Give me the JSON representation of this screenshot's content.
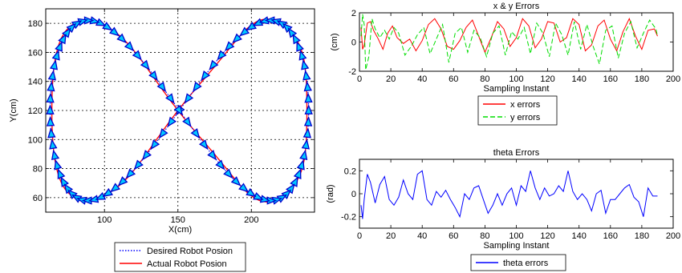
{
  "chart_data": [
    {
      "type": "line",
      "title": "",
      "xlabel": "X(cm)",
      "ylabel": "Y(cm)",
      "xlim": [
        60,
        243
      ],
      "ylim": [
        50,
        190
      ],
      "xticks": [
        100,
        150,
        200
      ],
      "yticks": [
        60,
        80,
        100,
        120,
        140,
        160,
        180
      ],
      "grid": "dotted",
      "legend_position": "bottom-outside",
      "series": [
        {
          "name": "Desired Robot Posion",
          "style": "dotted",
          "color": "#0000ff",
          "x": [
            150,
            165.4,
            180.3,
            194.2,
            206.6,
            217.0,
            224.9,
            230.1,
            232.4,
            231.6,
            227.6,
            220.7,
            211.0,
            198.9,
            185.0,
            169.9,
            154.1,
            138.4,
            123.1,
            109.0,
            96.6,
            86.6,
            79.2,
            74.8,
            73.5,
            75.4,
            80.4,
            88.2,
            98.5,
            110.9,
            125.0,
            140.2,
            150
          ],
          "y": [
            120,
            135.7,
            150.0,
            162.5,
            172.3,
            179.0,
            181.8,
            180.8,
            175.8,
            167.0,
            154.7,
            139.6,
            122.6,
            105.0,
            88.0,
            72.9,
            60.6,
            52.0,
            47.6,
            47.6,
            52.0,
            60.6,
            72.9,
            88.0,
            105.0,
            122.6,
            139.6,
            154.7,
            167.0,
            175.8,
            180.8,
            181.8,
            120
          ]
        },
        {
          "name": "Actual Robot Posion",
          "style": "solid",
          "color": "#ff0000",
          "x": [],
          "y": []
        }
      ],
      "robot_markers": {
        "count": 96,
        "fill": "#00c8ff",
        "stroke": "#0000cc"
      },
      "figure_eight": {
        "center_x": 151,
        "center_y": 120,
        "amp_x": 88,
        "amp_y": 62,
        "min_y": 58,
        "max_y": 182
      }
    },
    {
      "type": "line",
      "title": "x & y Errors",
      "xlabel": "Sampling Instant",
      "ylabel": "(cm)",
      "xlim": [
        0,
        200
      ],
      "ylim": [
        -2,
        2
      ],
      "xticks": [
        0,
        20,
        40,
        60,
        80,
        100,
        120,
        140,
        160,
        180,
        200
      ],
      "yticks": [
        -2,
        0,
        2
      ],
      "legend_position": "bottom-outside",
      "series": [
        {
          "name": "x errors",
          "style": "solid",
          "color": "#ff0000",
          "x": [
            1,
            2,
            3,
            5,
            7,
            9,
            12,
            15,
            18,
            21,
            24,
            28,
            32,
            36,
            40,
            44,
            48,
            52,
            56,
            60,
            64,
            68,
            72,
            76,
            80,
            84,
            88,
            92,
            96,
            100,
            104,
            108,
            112,
            116,
            120,
            124,
            128,
            132,
            136,
            140,
            144,
            148,
            152,
            156,
            160,
            164,
            168,
            172,
            176,
            180,
            184,
            188,
            190
          ],
          "y": [
            1.0,
            -0.5,
            -0.2,
            1.3,
            1.4,
            0.8,
            0.2,
            -0.5,
            0.6,
            1.1,
            0.3,
            -0.1,
            0.2,
            -0.6,
            0.1,
            1.2,
            1.6,
            0.9,
            -0.3,
            -0.5,
            0.1,
            1.0,
            1.5,
            0.4,
            -0.7,
            0.3,
            1.4,
            0.9,
            -0.3,
            0.3,
            1.6,
            1.1,
            -0.4,
            0.2,
            1.4,
            1.3,
            0.0,
            0.3,
            1.6,
            1.2,
            -0.6,
            -0.2,
            1.1,
            1.5,
            0.2,
            -0.6,
            0.7,
            1.6,
            0.4,
            -0.5,
            0.8,
            0.9,
            0.4
          ]
        },
        {
          "name": "y errors",
          "style": "dashed",
          "color": "#00dd00",
          "x": [
            1,
            2,
            3,
            4,
            6,
            8,
            10,
            13,
            16,
            19,
            22,
            25,
            29,
            33,
            37,
            41,
            45,
            49,
            53,
            57,
            61,
            65,
            69,
            73,
            77,
            81,
            85,
            89,
            93,
            97,
            101,
            105,
            109,
            113,
            117,
            121,
            125,
            129,
            133,
            137,
            141,
            145,
            149,
            153,
            157,
            161,
            165,
            169,
            173,
            177,
            181,
            185,
            189,
            190
          ],
          "y": [
            0.4,
            1.9,
            1.2,
            -1.9,
            -1.0,
            1.6,
            0.9,
            0.3,
            0.8,
            0.2,
            1.0,
            0.6,
            -0.9,
            -0.3,
            0.5,
            1.0,
            -0.8,
            0.2,
            1.2,
            -1.4,
            0.6,
            1.0,
            -0.7,
            0.8,
            0.3,
            -1.0,
            0.6,
            1.1,
            -0.9,
            0.7,
            0.2,
            1.0,
            -0.8,
            1.3,
            0.6,
            -1.0,
            1.3,
            0.5,
            -0.9,
            1.4,
            -0.5,
            1.2,
            -0.3,
            -1.5,
            0.8,
            1.1,
            -1.1,
            0.6,
            1.4,
            -0.4,
            0.6,
            1.5,
            0.9,
            0.4
          ]
        }
      ]
    },
    {
      "type": "line",
      "title": "theta Errors",
      "xlabel": "Sampling Instant",
      "ylabel": "(rad)",
      "xlim": [
        0,
        200
      ],
      "ylim": [
        -0.3,
        0.3
      ],
      "xticks": [
        0,
        20,
        40,
        60,
        80,
        100,
        120,
        140,
        160,
        180,
        200
      ],
      "yticks": [
        -0.2,
        0,
        0.2
      ],
      "legend_position": "bottom-outside",
      "series": [
        {
          "name": "theta errors",
          "style": "solid",
          "color": "#0000ff",
          "x": [
            1,
            2,
            3,
            5,
            7,
            10,
            13,
            16,
            19,
            22,
            25,
            28,
            31,
            34,
            37,
            40,
            43,
            46,
            49,
            52,
            55,
            58,
            61,
            64,
            67,
            70,
            73,
            76,
            79,
            82,
            85,
            88,
            91,
            94,
            97,
            100,
            103,
            106,
            109,
            112,
            115,
            118,
            121,
            124,
            127,
            130,
            133,
            136,
            139,
            142,
            145,
            148,
            151,
            154,
            157,
            160,
            163,
            166,
            169,
            172,
            175,
            178,
            181,
            184,
            187,
            190
          ],
          "y": [
            -0.1,
            -0.22,
            -0.05,
            0.17,
            0.1,
            -0.08,
            0.08,
            0.15,
            -0.05,
            -0.1,
            -0.03,
            0.12,
            0.0,
            -0.05,
            0.17,
            0.2,
            -0.05,
            -0.1,
            0.02,
            -0.03,
            0.03,
            -0.05,
            -0.12,
            -0.2,
            0.0,
            -0.05,
            0.05,
            0.07,
            -0.05,
            -0.17,
            -0.1,
            0.0,
            -0.1,
            0.0,
            0.05,
            -0.1,
            0.07,
            0.02,
            0.2,
            0.05,
            -0.05,
            0.05,
            -0.02,
            0.0,
            0.07,
            0.02,
            0.2,
            0.02,
            -0.05,
            0.0,
            -0.05,
            -0.15,
            0.0,
            0.03,
            -0.17,
            -0.05,
            -0.05,
            0.0,
            0.05,
            0.08,
            -0.03,
            -0.07,
            -0.2,
            0.05,
            -0.02,
            -0.02
          ]
        }
      ]
    }
  ]
}
